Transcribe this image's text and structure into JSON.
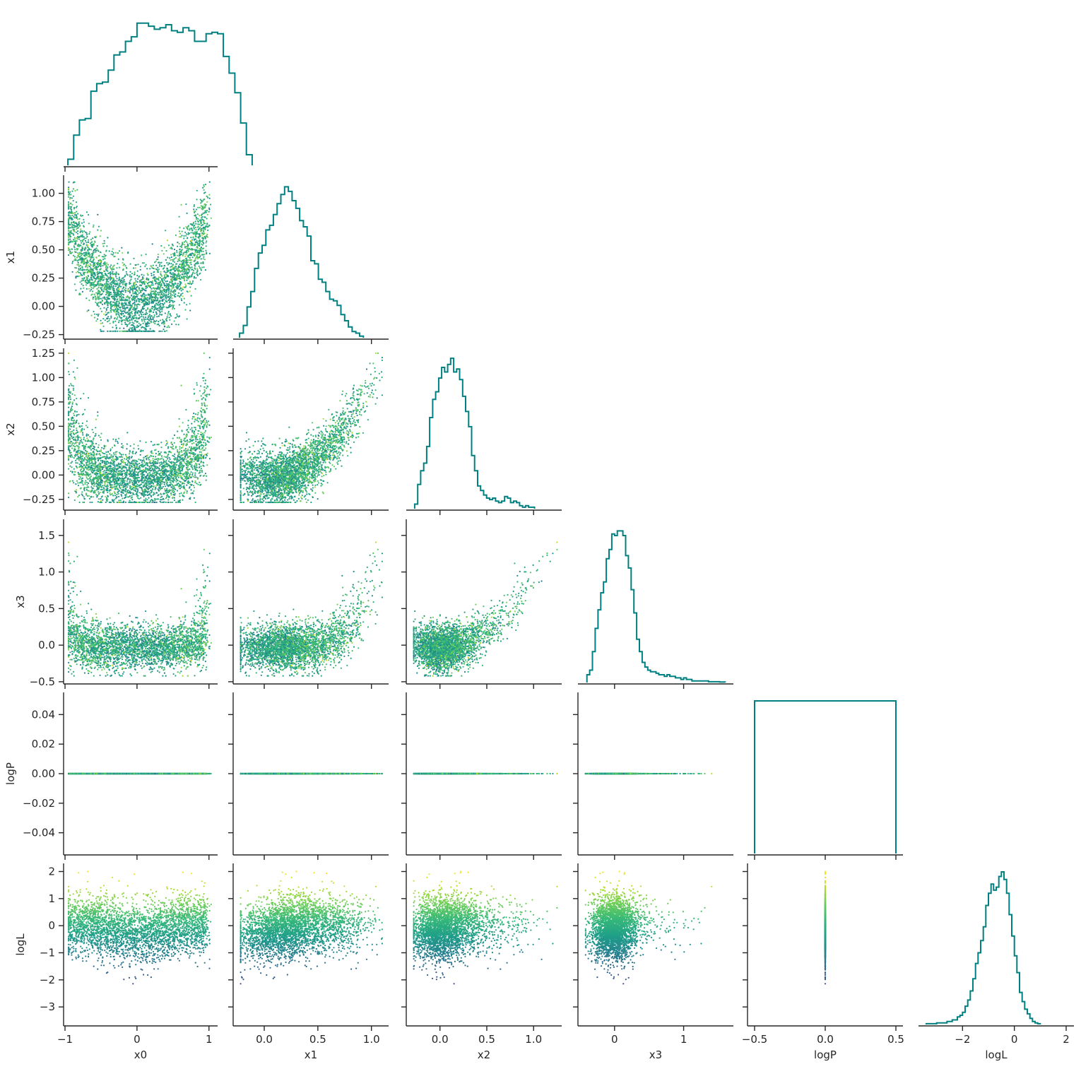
{
  "chart_data": {
    "type": "corner",
    "variables": [
      "x0",
      "x1",
      "x2",
      "x3",
      "logP",
      "logL"
    ],
    "axis_labels": [
      "x0",
      "x1",
      "x2",
      "x3",
      "logP",
      "logL"
    ],
    "ranges": {
      "x0": [
        -1.02,
        1.12
      ],
      "x1": [
        -0.29,
        1.16
      ],
      "x2": [
        -0.36,
        1.3
      ],
      "x3": [
        -0.53,
        1.72
      ],
      "logP": [
        -0.055,
        0.055
      ],
      "logL": [
        -3.7,
        2.3
      ]
    },
    "ticks": {
      "x0": {
        "values": [
          -1,
          0,
          1
        ],
        "labels": [
          "−1",
          "0",
          "1"
        ]
      },
      "x1": {
        "values": [
          -0.25,
          0,
          0.25,
          0.5,
          0.75,
          1.0
        ],
        "labels": [
          "−0.25",
          "0.00",
          "0.25",
          "0.50",
          "0.75",
          "1.00"
        ],
        "bottom_values": [
          0,
          0.5,
          1.0
        ],
        "bottom_labels": [
          "0.0",
          "0.5",
          "1.0"
        ]
      },
      "x2": {
        "values": [
          -0.25,
          0,
          0.25,
          0.5,
          0.75,
          1.0,
          1.25
        ],
        "labels": [
          "−0.25",
          "0.00",
          "0.25",
          "0.50",
          "0.75",
          "1.00",
          "1.25"
        ],
        "bottom_values": [
          0,
          0.5,
          1.0
        ],
        "bottom_labels": [
          "0.0",
          "0.5",
          "1.0"
        ]
      },
      "x3": {
        "values": [
          -0.5,
          0,
          0.5,
          1.0,
          1.5
        ],
        "labels": [
          "−0.5",
          "0.0",
          "0.5",
          "1.0",
          "1.5"
        ],
        "bottom_values": [
          0,
          1
        ],
        "bottom_labels": [
          "0",
          "1"
        ]
      },
      "logP": {
        "values": [
          -0.04,
          -0.02,
          0,
          0.02,
          0.04
        ],
        "labels": [
          "−0.04",
          "−0.02",
          "0.00",
          "0.02",
          "0.04"
        ],
        "bottom_values": [
          -0.5,
          0,
          0.5
        ],
        "bottom_labels": [
          "−0.5",
          "0.0",
          "0.5"
        ],
        "bottom_range": [
          -0.55,
          0.55
        ]
      },
      "logL": {
        "values": [
          -3,
          -2,
          -1,
          0,
          1,
          2
        ],
        "labels": [
          "−3",
          "−2",
          "−1",
          "0",
          "1",
          "2"
        ],
        "bottom_values": [
          -2,
          0,
          2
        ],
        "bottom_labels": [
          "−2",
          "0",
          "2"
        ]
      }
    },
    "histograms": {
      "x0": {
        "edges_start": -0.96,
        "bin_width": 0.08,
        "counts": [
          0.04,
          0.2,
          0.3,
          0.31,
          0.49,
          0.54,
          0.55,
          0.63,
          0.73,
          0.75,
          0.82,
          0.85,
          0.94,
          0.94,
          0.92,
          0.9,
          0.91,
          0.93,
          0.89,
          0.88,
          0.91,
          0.89,
          0.82,
          0.82,
          0.87,
          0.88,
          0.87,
          0.72,
          0.61,
          0.48,
          0.28,
          0.07
        ]
      },
      "x1": {
        "edges_start": -0.23,
        "bin_width": 0.035,
        "counts": [
          0.03,
          0.08,
          0.2,
          0.3,
          0.45,
          0.55,
          0.6,
          0.7,
          0.73,
          0.8,
          0.87,
          0.93,
          0.98,
          0.95,
          0.89,
          0.84,
          0.76,
          0.72,
          0.66,
          0.5,
          0.48,
          0.38,
          0.36,
          0.3,
          0.25,
          0.24,
          0.21,
          0.15,
          0.11,
          0.07,
          0.04,
          0.03,
          0.01
        ]
      },
      "x2": {
        "edges_start": -0.27,
        "bin_width": 0.032,
        "counts": [
          0.03,
          0.16,
          0.25,
          0.3,
          0.41,
          0.6,
          0.72,
          0.77,
          0.86,
          0.93,
          0.9,
          0.95,
          0.99,
          0.9,
          0.92,
          0.85,
          0.74,
          0.64,
          0.54,
          0.35,
          0.25,
          0.15,
          0.12,
          0.09,
          0.07,
          0.06,
          0.07,
          0.05,
          0.04,
          0.05,
          0.08,
          0.07,
          0.04,
          0.05,
          0.04,
          0.02,
          0.01,
          0.02,
          0.01,
          0.01
        ]
      },
      "x3": {
        "edges_start": -0.4,
        "bin_width": 0.04,
        "counts": [
          0.05,
          0.08,
          0.2,
          0.35,
          0.47,
          0.58,
          0.65,
          0.8,
          0.86,
          0.96,
          0.95,
          0.98,
          0.98,
          0.95,
          0.82,
          0.74,
          0.6,
          0.45,
          0.28,
          0.2,
          0.13,
          0.1,
          0.08,
          0.07,
          0.07,
          0.06,
          0.05,
          0.05,
          0.04,
          0.05,
          0.04,
          0.04,
          0.03,
          0.03,
          0.02,
          0.03,
          0.02,
          0.02,
          0.01,
          0.01,
          0.01,
          0.01,
          0.01,
          0.01,
          0.005,
          0.005,
          0.005,
          0.005,
          0.003,
          0.003
        ]
      },
      "logP": {
        "edges": [
          -0.5,
          0.5
        ],
        "counts": [
          1.0
        ]
      },
      "logL": {
        "edges_start": -3.4,
        "bin_width": 0.1,
        "counts": [
          0.005,
          0.005,
          0.005,
          0.005,
          0.01,
          0.01,
          0.01,
          0.01,
          0.02,
          0.02,
          0.03,
          0.03,
          0.05,
          0.06,
          0.08,
          0.12,
          0.16,
          0.22,
          0.3,
          0.4,
          0.47,
          0.55,
          0.64,
          0.78,
          0.86,
          0.92,
          0.88,
          0.9,
          0.97,
          1.0,
          0.95,
          0.86,
          0.72,
          0.58,
          0.45,
          0.34,
          0.21,
          0.15,
          0.1,
          0.07,
          0.04,
          0.02,
          0.01,
          0.005
        ]
      }
    },
    "point_color_variable": "logL",
    "colormap": "viridis",
    "hist_color": "#008080",
    "grid": false,
    "legend": "none"
  }
}
